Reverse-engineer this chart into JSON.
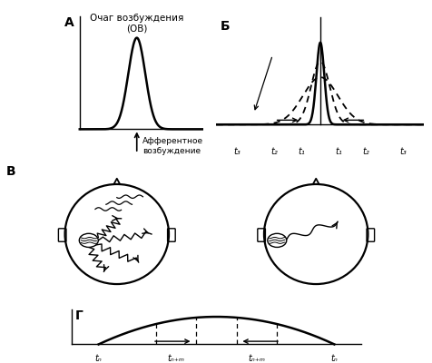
{
  "bg_color": "#ffffff",
  "label_A": "А",
  "label_B": "Б",
  "label_V": "В",
  "label_G": "Г",
  "text_OV": "Очаг возбуждения\n(ОВ)",
  "text_afferent": "Афферентное\nвозбуждение",
  "t_labels_B_left": [
    "t₃",
    "t₂",
    "t₁"
  ],
  "t_labels_B_right": [
    "t₁",
    "t₂",
    "t₃"
  ],
  "t_labels_G": [
    "tₙ",
    "tₙ₊ₘ",
    "tₙ₊ₘ",
    "tₙ"
  ]
}
